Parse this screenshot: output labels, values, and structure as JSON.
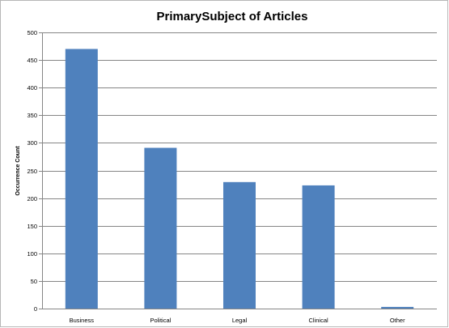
{
  "chart_data": {
    "type": "bar",
    "title": "PrimarySubject of Articles",
    "xlabel": "",
    "ylabel": "Occurrence Count",
    "categories": [
      "Business",
      "Political",
      "Legal",
      "Clinical",
      "Other"
    ],
    "values": [
      470,
      291,
      229,
      223,
      3
    ],
    "ylim": [
      0,
      500
    ],
    "yticks": [
      0,
      50,
      100,
      150,
      200,
      250,
      300,
      350,
      400,
      450,
      500
    ],
    "grid": true,
    "legend": "none",
    "bar_color": "#4f81bd",
    "grid_color": "#868686"
  }
}
